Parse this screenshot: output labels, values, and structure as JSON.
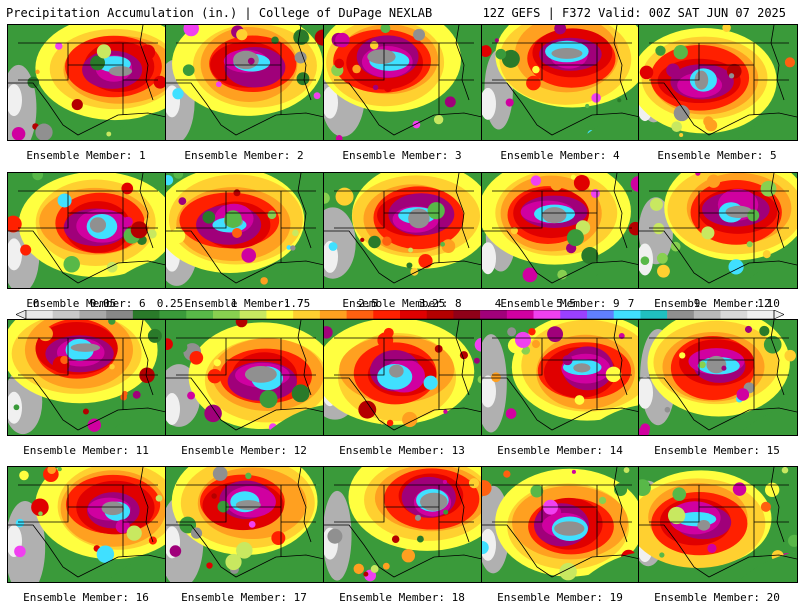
{
  "header": {
    "left_title": "Precipitation Accumulation (in.) | College of DuPage NEXLAB",
    "right_title": "12Z GEFS | F372 Valid: 00Z SAT JUN 07 2025"
  },
  "colorbar": {
    "labels": [
      "0",
      "0.05",
      "0.25",
      "1",
      "1.75",
      "2.5",
      "3.25",
      "4",
      "5.5",
      "7",
      "9",
      "12"
    ],
    "colors": [
      "#e8e8e8",
      "#c8c8c8",
      "#a8a8a8",
      "#888888",
      "#2a7a2a",
      "#3a9a3a",
      "#58b848",
      "#88d050",
      "#c8e860",
      "#ffff40",
      "#ffd030",
      "#ffa020",
      "#ff6010",
      "#ff2000",
      "#e00000",
      "#b40000",
      "#900018",
      "#a0007a",
      "#d000a0",
      "#f040f0",
      "#9a40ff",
      "#6080ff",
      "#40e0ff",
      "#20c0c0",
      "#909090",
      "#b8b8b8",
      "#d8d8d8",
      "#f0f0f0"
    ]
  },
  "panels": [
    {
      "caption": "Ensemble Member: 1"
    },
    {
      "caption": "Ensemble Member: 2"
    },
    {
      "caption": "Ensemble Member: 3"
    },
    {
      "caption": "Ensemble Member: 4"
    },
    {
      "caption": "Ensemble Member: 5"
    },
    {
      "caption": "Ensemble Member: 6"
    },
    {
      "caption": "Ensemble Member: 7"
    },
    {
      "caption": "Ensemble Member: 8"
    },
    {
      "caption": "Ensemble Member: 9"
    },
    {
      "caption": "Ensemble Member: 10"
    },
    {
      "caption": "Ensemble Member: 11"
    },
    {
      "caption": "Ensemble Member: 12"
    },
    {
      "caption": "Ensemble Member: 13"
    },
    {
      "caption": "Ensemble Member: 14"
    },
    {
      "caption": "Ensemble Member: 15"
    },
    {
      "caption": "Ensemble Member: 16"
    },
    {
      "caption": "Ensemble Member: 17"
    },
    {
      "caption": "Ensemble Member: 18"
    },
    {
      "caption": "Ensemble Member: 19"
    },
    {
      "caption": "Ensemble Member: 20"
    }
  ]
}
